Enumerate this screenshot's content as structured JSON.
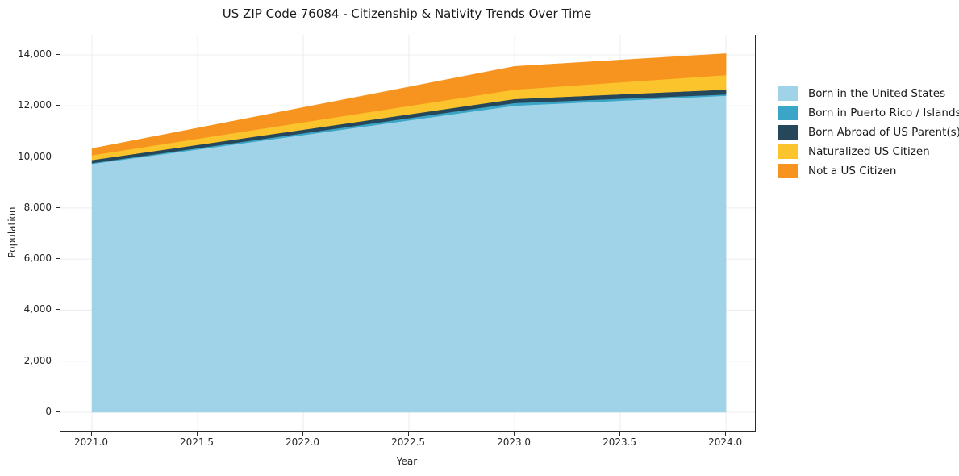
{
  "title": "US ZIP Code 76084 - Citizenship & Nativity Trends Over Time",
  "chart_data": {
    "type": "area",
    "stacked": true,
    "title": "US ZIP Code 76084 - Citizenship & Nativity Trends Over Time",
    "xlabel": "Year",
    "ylabel": "Population",
    "grid": true,
    "legend_position": "right-outside",
    "x": [
      2021,
      2022,
      2023,
      2024
    ],
    "xlim": [
      2020.851,
      2024.137
    ],
    "ylim": [
      -727,
      14758
    ],
    "x_ticks": [
      2021.0,
      2021.5,
      2022.0,
      2022.5,
      2023.0,
      2023.5,
      2024.0
    ],
    "x_tick_labels": [
      "2021.0",
      "2021.5",
      "2022.0",
      "2022.5",
      "2023.0",
      "2023.5",
      "2024.0"
    ],
    "y_ticks": [
      0,
      2000,
      4000,
      6000,
      8000,
      10000,
      12000,
      14000
    ],
    "y_tick_labels": [
      "0",
      "2,000",
      "4,000",
      "6,000",
      "8,000",
      "10,000",
      "12,000",
      "14,000"
    ],
    "series": [
      {
        "name": "Born in the United States",
        "color": "#a1d3e8",
        "values": [
          9730,
          10860,
          12010,
          12400
        ]
      },
      {
        "name": "Born in Puerto Rico / Islands",
        "color": "#3aa5c6",
        "values": [
          30,
          70,
          105,
          50
        ]
      },
      {
        "name": "Born Abroad of US Parent(s)",
        "color": "#26475a",
        "values": [
          120,
          140,
          155,
          190
        ]
      },
      {
        "name": "Naturalized US Citizen",
        "color": "#fbc32c",
        "values": [
          190,
          290,
          370,
          570
        ]
      },
      {
        "name": "Not a US Citizen",
        "color": "#f7941f",
        "values": [
          260,
          580,
          910,
          840
        ]
      }
    ],
    "colors": {
      "grid": "#ececec",
      "spine": "#2b2b2b",
      "text": "#262626"
    }
  }
}
